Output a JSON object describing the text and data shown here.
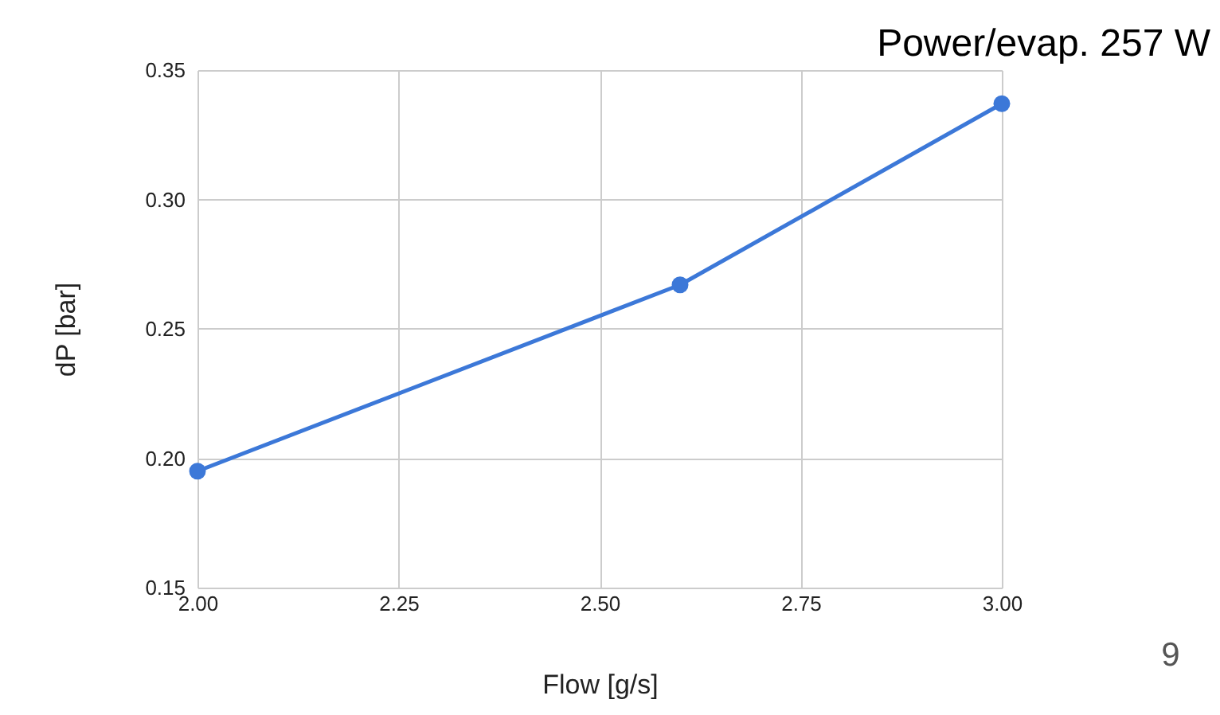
{
  "chart_data": {
    "type": "line",
    "xlabel": "Flow [g/s]",
    "ylabel": "dP [bar]",
    "annotations": [
      "Power/evap. 257 W",
      "9"
    ],
    "x": [
      2.0,
      2.6,
      3.0
    ],
    "series": [
      {
        "color": "#3c78d8",
        "values": [
          0.195,
          0.267,
          0.337
        ]
      }
    ],
    "xlim": [
      2.0,
      3.0
    ],
    "xticks": [
      {
        "value": 2.0,
        "label": "2.00"
      },
      {
        "value": 2.25,
        "label": "2.25"
      },
      {
        "value": 2.5,
        "label": "2.50"
      },
      {
        "value": 2.75,
        "label": "2.75"
      },
      {
        "value": 3.0,
        "label": "3.00"
      }
    ],
    "ylim": [
      0.15,
      0.35
    ],
    "yticks": [
      {
        "value": 0.15,
        "label": "0.15"
      },
      {
        "value": 0.2,
        "label": "0.20"
      },
      {
        "value": 0.25,
        "label": "0.25"
      },
      {
        "value": 0.3,
        "label": "0.30"
      },
      {
        "value": 0.35,
        "label": "0.35"
      }
    ],
    "grid": true,
    "marker": "circle",
    "line_style": "solid"
  }
}
